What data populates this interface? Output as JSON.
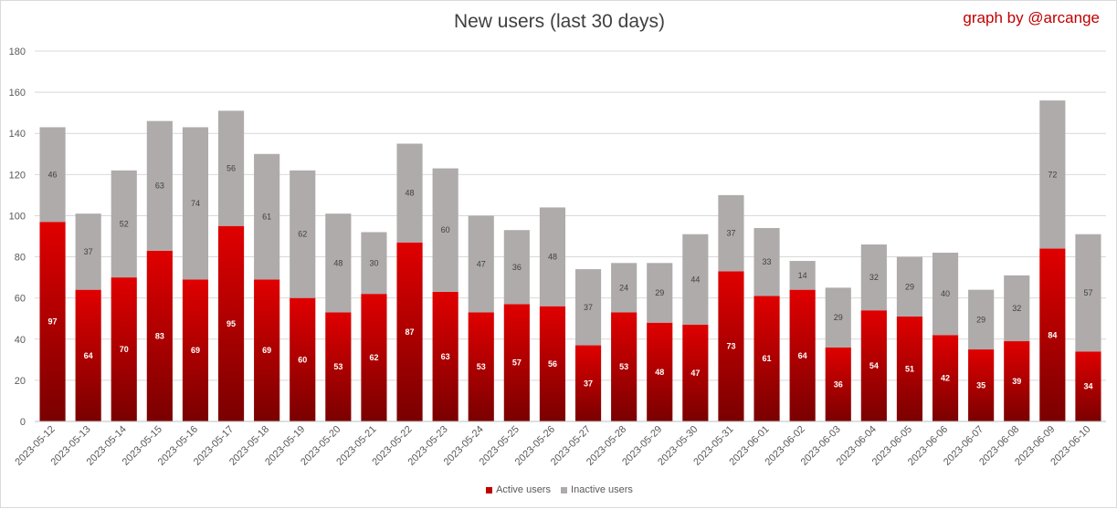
{
  "chart_data": {
    "type": "bar",
    "stacked": true,
    "title": "New users (last 30 days)",
    "credit": "graph by @arcange",
    "categories": [
      "2023-05-12",
      "2023-05-13",
      "2023-05-14",
      "2023-05-15",
      "2023-05-16",
      "2023-05-17",
      "2023-05-18",
      "2023-05-19",
      "2023-05-20",
      "2023-05-21",
      "2023-05-22",
      "2023-05-23",
      "2023-05-24",
      "2023-05-25",
      "2023-05-26",
      "2023-05-27",
      "2023-05-28",
      "2023-05-29",
      "2023-05-30",
      "2023-05-31",
      "2023-06-01",
      "2023-06-02",
      "2023-06-03",
      "2023-06-04",
      "2023-06-05",
      "2023-06-06",
      "2023-06-07",
      "2023-06-08",
      "2023-06-09",
      "2023-06-10"
    ],
    "series": [
      {
        "name": "Active users",
        "color": "#c00000",
        "values": [
          97,
          64,
          70,
          83,
          69,
          95,
          69,
          60,
          53,
          62,
          87,
          63,
          53,
          57,
          56,
          37,
          53,
          48,
          47,
          73,
          61,
          64,
          36,
          54,
          51,
          42,
          35,
          39,
          84,
          34
        ]
      },
      {
        "name": "Inactive users",
        "color": "#afabab",
        "values": [
          46,
          37,
          52,
          63,
          74,
          56,
          61,
          62,
          48,
          30,
          48,
          60,
          47,
          36,
          48,
          37,
          24,
          29,
          44,
          37,
          33,
          14,
          29,
          32,
          29,
          40,
          29,
          32,
          72,
          57
        ]
      }
    ],
    "ylim": [
      0,
      180
    ],
    "yticks": [
      0,
      20,
      40,
      60,
      80,
      100,
      120,
      140,
      160,
      180
    ],
    "grid": true,
    "legend_position": "bottom"
  }
}
